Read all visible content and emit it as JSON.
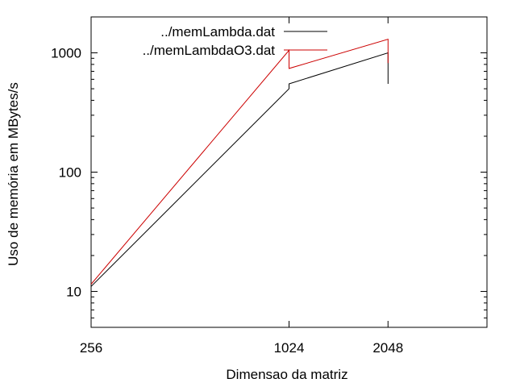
{
  "chart_data": {
    "type": "line",
    "xlabel": "Dimensao da matriz",
    "ylabel": "Uso de memória em MBytes/s",
    "x_scale": "log2",
    "y_scale": "log10",
    "xlim": [
      256,
      4096
    ],
    "ylim": [
      5,
      2000
    ],
    "x_ticks": [
      256,
      1024,
      2048
    ],
    "x_tick_labels": [
      "256",
      "1024",
      "2048"
    ],
    "y_ticks": [
      10,
      100,
      1000
    ],
    "y_tick_labels": [
      "10",
      "100",
      "1000"
    ],
    "legend_position": "top-right",
    "grid": false,
    "series": [
      {
        "name": "../memLambda.dat",
        "color": "#000000",
        "points": [
          [
            256,
            11
          ],
          [
            1024,
            500
          ],
          [
            1024,
            550
          ],
          [
            2048,
            1000
          ],
          [
            2048,
            550
          ]
        ]
      },
      {
        "name": "../memLambdaO3.dat",
        "color": "#cc0000",
        "points": [
          [
            256,
            11.5
          ],
          [
            1024,
            1050
          ],
          [
            1024,
            740
          ],
          [
            2048,
            1300
          ],
          [
            2048,
            820
          ]
        ]
      }
    ]
  }
}
